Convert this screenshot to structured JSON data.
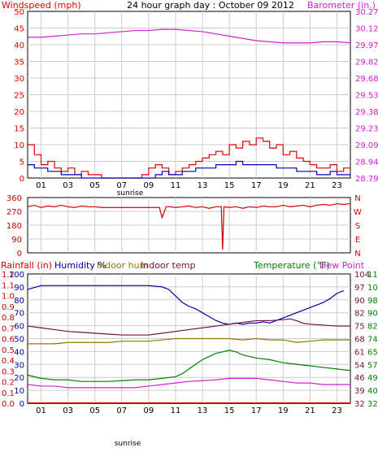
{
  "page": {
    "title": "24 hour graph day : October 09 2012",
    "sunrise_label": "sunrise"
  },
  "colors": {
    "wind": "#e00000",
    "gust": "#e00000",
    "wind_avg": "#0000c0",
    "barometer": "#d020d0",
    "direction": "#d00000",
    "humidity": "#0000a0",
    "indoor_hum": "#8a7a00",
    "indoor_temp": "#701040",
    "temperature": "#008000",
    "dew_point": "#d020d0",
    "rainfall": "#d00000",
    "grid": "#cccccc",
    "frame": "#000000"
  },
  "chart_data": [
    {
      "type": "line",
      "id": "wind-baro",
      "title": "24 hour graph day : October 09 2012",
      "ylabel_left": "Windspeed (mph)",
      "ylabel_right": "Barometer (in.)",
      "x_ticks": [
        "01",
        "03",
        "05",
        "07",
        "09",
        "11",
        "13",
        "15",
        "17",
        "19",
        "21",
        "23"
      ],
      "xlim": [
        0,
        24
      ],
      "y_left": {
        "ticks": [
          "0",
          "5",
          "10",
          "15",
          "20",
          "25",
          "30",
          "35",
          "40",
          "45",
          "50"
        ],
        "lim": [
          0,
          50
        ]
      },
      "y_right": {
        "ticks": [
          "28.79",
          "28.94",
          "29.09",
          "29.23",
          "29.38",
          "29.53",
          "29.68",
          "29.82",
          "29.97",
          "30.12",
          "30.27"
        ],
        "lim": [
          28.79,
          30.27
        ]
      },
      "series": [
        {
          "key": "gust",
          "axis": "left",
          "step": true,
          "x": [
            0,
            0.5,
            1,
            1.5,
            2,
            2.5,
            3,
            3.5,
            4,
            4.5,
            5,
            5.5,
            6,
            6.5,
            7,
            7.5,
            8,
            8.5,
            9,
            9.5,
            10,
            10.5,
            11,
            11.5,
            12,
            12.5,
            13,
            13.5,
            14,
            14.5,
            15,
            15.5,
            16,
            16.5,
            17,
            17.5,
            18,
            18.5,
            19,
            19.5,
            20,
            20.5,
            21,
            21.5,
            22,
            22.5,
            23,
            23.5
          ],
          "values": [
            10,
            7,
            4,
            5,
            3,
            2,
            3,
            1,
            2,
            1,
            1,
            0,
            0,
            0,
            0,
            0,
            0,
            1,
            3,
            4,
            3,
            1,
            2,
            3,
            4,
            5,
            6,
            7,
            8,
            7,
            10,
            9,
            11,
            10,
            12,
            11,
            9,
            10,
            7,
            8,
            6,
            5,
            4,
            3,
            3,
            4,
            2,
            3
          ]
        },
        {
          "key": "wind_avg",
          "axis": "left",
          "step": true,
          "x": [
            0,
            0.5,
            1,
            1.5,
            2,
            2.5,
            3,
            3.5,
            4,
            4.5,
            5,
            5.5,
            6,
            6.5,
            7,
            7.5,
            8,
            8.5,
            9,
            9.5,
            10,
            10.5,
            11,
            11.5,
            12,
            12.5,
            13,
            13.5,
            14,
            14.5,
            15,
            15.5,
            16,
            16.5,
            17,
            17.5,
            18,
            18.5,
            19,
            19.5,
            20,
            20.5,
            21,
            21.5,
            22,
            22.5,
            23,
            23.5
          ],
          "values": [
            4,
            3,
            3,
            2,
            2,
            1,
            1,
            1,
            0,
            0,
            0,
            0,
            0,
            0,
            0,
            0,
            0,
            0,
            0,
            1,
            2,
            1,
            1,
            2,
            2,
            3,
            3,
            3,
            4,
            4,
            4,
            5,
            4,
            4,
            4,
            4,
            4,
            3,
            3,
            3,
            2,
            2,
            2,
            1,
            1,
            2,
            1,
            1
          ]
        },
        {
          "key": "barometer",
          "axis": "right",
          "x": [
            0,
            1,
            2,
            3,
            4,
            5,
            6,
            7,
            8,
            9,
            10,
            11,
            12,
            13,
            14,
            15,
            16,
            17,
            18,
            19,
            20,
            21,
            22,
            23,
            24
          ],
          "values": [
            30.04,
            30.04,
            30.05,
            30.06,
            30.07,
            30.07,
            30.08,
            30.09,
            30.1,
            30.1,
            30.11,
            30.11,
            30.1,
            30.09,
            30.07,
            30.05,
            30.03,
            30.01,
            30,
            29.99,
            29.99,
            29.99,
            30,
            30,
            29.99
          ]
        }
      ]
    },
    {
      "type": "line",
      "id": "direction",
      "x_ticks": [],
      "xlim": [
        0,
        24
      ],
      "y_left": {
        "ticks": [
          "0",
          "90",
          "180",
          "270",
          "360"
        ],
        "lim": [
          0,
          360
        ]
      },
      "y_right": {
        "ticks": [
          "N",
          "E",
          "S",
          "W",
          "N"
        ],
        "lim": [
          0,
          360
        ]
      },
      "series": [
        {
          "key": "direction",
          "axis": "left",
          "x": [
            0,
            0.5,
            1,
            1.5,
            2,
            2.5,
            3,
            3.5,
            4,
            4.5,
            5,
            5.5,
            6,
            6.5,
            7,
            7.5,
            8,
            8.5,
            9,
            9.5,
            9.8,
            10,
            10.3,
            10.6,
            11,
            11.5,
            12,
            12.5,
            13,
            13.5,
            14,
            14.4,
            14.5,
            14.6,
            15,
            15.5,
            16,
            16.5,
            17,
            17.5,
            18,
            18.5,
            19,
            19.5,
            20,
            20.5,
            21,
            21.5,
            22,
            22.5,
            23,
            23.5,
            24
          ],
          "values": [
            300,
            310,
            295,
            305,
            300,
            310,
            300,
            295,
            305,
            300,
            300,
            295,
            295,
            295,
            295,
            295,
            295,
            295,
            295,
            295,
            295,
            230,
            300,
            300,
            295,
            300,
            305,
            295,
            300,
            290,
            300,
            300,
            20,
            300,
            295,
            300,
            290,
            300,
            295,
            305,
            300,
            300,
            310,
            300,
            305,
            310,
            300,
            310,
            315,
            310,
            320,
            315,
            320
          ]
        }
      ]
    },
    {
      "type": "line",
      "id": "humidity-temp",
      "ylabel_left": "Rainfall (in)",
      "legend_left": [
        "Humidity %",
        "Indoor hum",
        "Indoor temp"
      ],
      "legend_right": [
        "Temperature (°F)",
        "Dew Point"
      ],
      "x_ticks": [
        "01",
        "03",
        "05",
        "07",
        "09",
        "11",
        "13",
        "15",
        "17",
        "19",
        "21",
        "23"
      ],
      "xlim": [
        0,
        24
      ],
      "y_left_outer": {
        "ticks": [
          "0.0",
          "0.1",
          "0.2",
          "0.3",
          "0.4",
          "0.5",
          "0.6",
          "0.7",
          "0.8",
          "0.9",
          "1.0",
          "1.1",
          "1.2"
        ],
        "lim": [
          0,
          1.2
        ]
      },
      "y_left": {
        "ticks": [
          "0",
          "10",
          "20",
          "30",
          "40",
          "50",
          "60",
          "70",
          "80",
          "90",
          "100"
        ],
        "lim": [
          0,
          100
        ]
      },
      "y_right_inner": {
        "ticks": [
          "32",
          "39",
          "46",
          "54",
          "61",
          "68",
          "75",
          "82",
          "90",
          "97",
          "104"
        ],
        "lim": [
          32,
          104
        ]
      },
      "y_right": {
        "ticks": [
          "32",
          "40",
          "49",
          "57",
          "65",
          "74",
          "82",
          "90",
          "98",
          "107",
          "115"
        ],
        "lim": [
          32,
          115
        ]
      },
      "series": [
        {
          "key": "humidity",
          "axis": "left",
          "x": [
            0,
            1,
            2,
            3,
            4,
            5,
            6,
            7,
            8,
            9,
            10,
            10.5,
            11,
            11.5,
            12,
            12.5,
            13,
            13.5,
            14,
            14.5,
            15,
            15.5,
            16,
            16.5,
            17,
            17.5,
            18,
            18.5,
            19,
            19.5,
            20,
            20.5,
            21,
            21.5,
            22,
            22.5,
            23,
            23.5
          ],
          "values": [
            88,
            91,
            91,
            91,
            91,
            91,
            91,
            91,
            91,
            91,
            90,
            88,
            83,
            78,
            75,
            73,
            70,
            67,
            64,
            62,
            61,
            62,
            61,
            62,
            62,
            63,
            62,
            64,
            66,
            68,
            70,
            72,
            74,
            76,
            78,
            81,
            85,
            87
          ]
        },
        {
          "key": "indoor_temp",
          "axis": "right_inner",
          "x": [
            0,
            1,
            2,
            3,
            4,
            5,
            6,
            7,
            8,
            9,
            10,
            11,
            12,
            13,
            14,
            15,
            16,
            17,
            18,
            19,
            19.5,
            20,
            20.5,
            21,
            22,
            23,
            24
          ],
          "values": [
            75,
            74,
            73,
            72,
            71.5,
            71,
            70.5,
            70,
            70,
            70,
            71,
            72,
            73,
            74,
            75,
            76,
            77,
            78,
            78,
            78.5,
            79,
            78,
            76.5,
            76,
            75.5,
            75,
            75
          ]
        },
        {
          "key": "indoor_hum",
          "axis": "left",
          "x": [
            0,
            1,
            2,
            3,
            4,
            5,
            6,
            7,
            8,
            9,
            10,
            11,
            12,
            13,
            14,
            15,
            16,
            17,
            18,
            19,
            20,
            21,
            22,
            23,
            24
          ],
          "values": [
            46,
            46,
            46,
            47,
            47,
            47,
            47,
            48,
            48,
            48,
            49,
            50,
            50,
            50,
            50,
            50,
            49,
            50,
            49,
            49,
            47,
            48,
            49,
            49,
            49
          ]
        },
        {
          "key": "temperature",
          "axis": "right",
          "x": [
            0,
            1,
            2,
            3,
            4,
            5,
            6,
            7,
            8,
            9,
            10,
            11,
            11.5,
            12,
            12.5,
            13,
            13.5,
            14,
            14.5,
            15,
            15.5,
            16,
            17,
            18,
            19,
            20,
            21,
            22,
            23,
            24
          ],
          "values": [
            50,
            48,
            47,
            47,
            46,
            46,
            46,
            46.5,
            47,
            47,
            48,
            49,
            51,
            54,
            57,
            60,
            62,
            64,
            65,
            66,
            65,
            63,
            61,
            60,
            58,
            57,
            56,
            55,
            54,
            53
          ]
        },
        {
          "key": "dew_point",
          "axis": "right",
          "x": [
            0,
            1,
            2,
            3,
            4,
            5,
            6,
            7,
            8,
            9,
            10,
            11,
            12,
            13,
            14,
            15,
            16,
            17,
            18,
            19,
            20,
            21,
            22,
            23,
            24
          ],
          "values": [
            44,
            43,
            43,
            42,
            42,
            42,
            42,
            42,
            42,
            43,
            44,
            45,
            46,
            46.5,
            47,
            48,
            48,
            48,
            47,
            46,
            45,
            45,
            44,
            44,
            44
          ]
        },
        {
          "key": "rainfall",
          "axis": "left_outer",
          "x": [
            0,
            24
          ],
          "values": [
            0,
            0
          ]
        }
      ]
    }
  ]
}
